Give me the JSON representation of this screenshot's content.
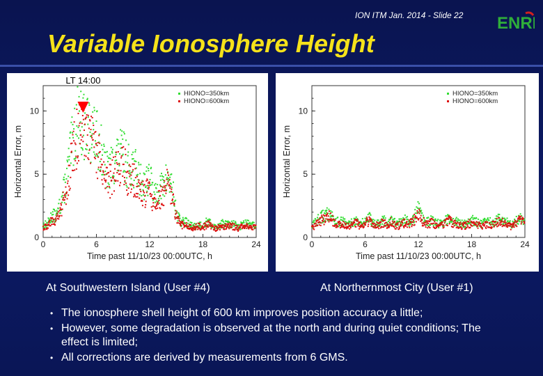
{
  "slide": {
    "label": "ION ITM Jan. 2014 - Slide 22",
    "title": "Variable Ionosphere Height",
    "logo_text": "ENRI"
  },
  "colors": {
    "background": "#0c1a66",
    "title": "#f5e21a",
    "series_350": "#33dd33",
    "series_600": "#dd1111",
    "marker": "#ff0000"
  },
  "chart_data": [
    {
      "type": "scatter",
      "caption": "At Southwestern Island (User #4)",
      "xlabel": "Time past 11/10/23 00:00UTC, h",
      "ylabel": "Horizontal Error, m",
      "xlim": [
        0,
        24
      ],
      "ylim": [
        0,
        12
      ],
      "xticks": [
        0,
        6,
        12,
        18,
        24
      ],
      "yticks": [
        0,
        5,
        10
      ],
      "annotation": {
        "text": "LT 14:00",
        "x": 4.5
      },
      "legend": {
        "position": "top-right",
        "entries": [
          "HIONO=350km",
          "HIONO=600km"
        ]
      },
      "series": [
        {
          "name": "HIONO=350km",
          "color": "#33dd33",
          "x": [
            0,
            0.5,
            1,
            1.5,
            2,
            2.5,
            3,
            3.5,
            4,
            4.5,
            5,
            5.5,
            6,
            6.5,
            7,
            7.5,
            8,
            8.5,
            9,
            9.5,
            10,
            10.5,
            11,
            11.5,
            12,
            12.5,
            13,
            13.5,
            14,
            14.5,
            15,
            15.5,
            16,
            16.5,
            17,
            17.5,
            18,
            18.5,
            19,
            19.5,
            20,
            20.5,
            21,
            21.5,
            22,
            22.5,
            23,
            23.5,
            24
          ],
          "y": [
            1.0,
            1.1,
            1.8,
            1.7,
            2.8,
            4.3,
            6.5,
            8.5,
            9.8,
            9.0,
            8.8,
            8.8,
            8.0,
            7.5,
            5.4,
            5.5,
            6.2,
            6.6,
            6.9,
            5.8,
            6.0,
            5.4,
            4.6,
            4.4,
            5.2,
            3.2,
            4.0,
            4.1,
            4.9,
            4.2,
            2.0,
            1.2,
            1.3,
            1.0,
            0.9,
            1.0,
            1.0,
            1.3,
            1.0,
            0.8,
            1.1,
            1.1,
            1.0,
            1.1,
            0.8,
            1.1,
            1.1,
            1.0,
            0.9
          ]
        },
        {
          "name": "HIONO=600km",
          "color": "#dd1111",
          "x": [
            0,
            0.5,
            1,
            1.5,
            2,
            2.5,
            3,
            3.5,
            4,
            4.5,
            5,
            5.5,
            6,
            6.5,
            7,
            7.5,
            8,
            8.5,
            9,
            9.5,
            10,
            10.5,
            11,
            11.5,
            12,
            12.5,
            13,
            13.5,
            14,
            14.5,
            15,
            15.5,
            16,
            16.5,
            17,
            17.5,
            18,
            18.5,
            19,
            19.5,
            20,
            20.5,
            21,
            21.5,
            22,
            22.5,
            23,
            23.5,
            24
          ],
          "y": [
            0.8,
            1.0,
            1.5,
            1.4,
            2.2,
            3.5,
            5.5,
            7.3,
            8.5,
            8.0,
            8.0,
            7.8,
            6.8,
            6.1,
            4.3,
            4.6,
            5.2,
            5.8,
            6.1,
            4.9,
            4.8,
            4.4,
            3.6,
            3.4,
            4.0,
            2.5,
            3.2,
            3.4,
            4.3,
            3.3,
            1.6,
            1.0,
            1.0,
            0.8,
            0.8,
            0.9,
            0.8,
            1.1,
            0.9,
            0.7,
            0.9,
            0.9,
            0.9,
            0.9,
            0.7,
            0.9,
            0.9,
            0.8,
            0.8
          ]
        }
      ]
    },
    {
      "type": "scatter",
      "caption": "At Northernmost City (User #1)",
      "xlabel": "Time past 11/10/23 00:00UTC, h",
      "ylabel": "Horizontal Error, m",
      "xlim": [
        0,
        24
      ],
      "ylim": [
        0,
        12
      ],
      "xticks": [
        0,
        6,
        12,
        18,
        24
      ],
      "yticks": [
        0,
        5,
        10
      ],
      "legend": {
        "position": "top-right",
        "entries": [
          "HIONO=350km",
          "HIONO=600km"
        ]
      },
      "series": [
        {
          "name": "HIONO=350km",
          "color": "#33dd33",
          "x": [
            0,
            0.5,
            1,
            1.5,
            2,
            2.5,
            3,
            3.5,
            4,
            4.5,
            5,
            5.5,
            6,
            6.5,
            7,
            7.5,
            8,
            8.5,
            9,
            9.5,
            10,
            10.5,
            11,
            11.5,
            12,
            12.5,
            13,
            13.5,
            14,
            14.5,
            15,
            15.5,
            16,
            16.5,
            17,
            17.5,
            18,
            18.5,
            19,
            19.5,
            20,
            20.5,
            21,
            21.5,
            22,
            22.5,
            23,
            23.5,
            24
          ],
          "y": [
            1.0,
            1.3,
            1.6,
            1.8,
            2.0,
            1.5,
            1.2,
            1.3,
            1.0,
            1.2,
            1.4,
            1.1,
            1.3,
            1.7,
            1.1,
            1.2,
            1.4,
            1.2,
            1.5,
            1.1,
            1.2,
            1.4,
            1.3,
            1.6,
            2.3,
            1.5,
            1.2,
            1.4,
            1.2,
            1.1,
            1.3,
            1.6,
            1.3,
            1.2,
            1.1,
            1.2,
            1.4,
            1.3,
            1.1,
            1.2,
            1.3,
            1.2,
            1.5,
            1.4,
            1.2,
            1.1,
            1.3,
            1.6,
            1.3
          ]
        },
        {
          "name": "HIONO=600km",
          "color": "#dd1111",
          "x": [
            0,
            0.5,
            1,
            1.5,
            2,
            2.5,
            3,
            3.5,
            4,
            4.5,
            5,
            5.5,
            6,
            6.5,
            7,
            7.5,
            8,
            8.5,
            9,
            9.5,
            10,
            10.5,
            11,
            11.5,
            12,
            12.5,
            13,
            13.5,
            14,
            14.5,
            15,
            15.5,
            16,
            16.5,
            17,
            17.5,
            18,
            18.5,
            19,
            19.5,
            20,
            20.5,
            21,
            21.5,
            22,
            22.5,
            23,
            23.5,
            24
          ],
          "y": [
            0.8,
            1.1,
            1.4,
            1.5,
            1.7,
            1.2,
            1.0,
            1.1,
            0.9,
            1.0,
            1.2,
            0.9,
            1.1,
            1.4,
            0.9,
            1.0,
            1.2,
            1.0,
            1.3,
            0.9,
            1.0,
            1.2,
            1.1,
            1.4,
            1.9,
            1.3,
            1.0,
            1.2,
            1.0,
            0.9,
            1.1,
            1.4,
            1.1,
            1.0,
            0.9,
            1.0,
            1.2,
            1.1,
            0.9,
            1.0,
            1.1,
            1.0,
            1.3,
            1.2,
            1.0,
            0.9,
            1.1,
            1.4,
            1.1
          ]
        }
      ]
    }
  ],
  "bullets": [
    "The ionosphere shell height of 600 km improves position accuracy a little;",
    "However, some degradation is observed at the north and during quiet conditions; The effect is limited;",
    "All corrections are derived by measurements from 6 GMS."
  ],
  "bullet_glyph": "•"
}
